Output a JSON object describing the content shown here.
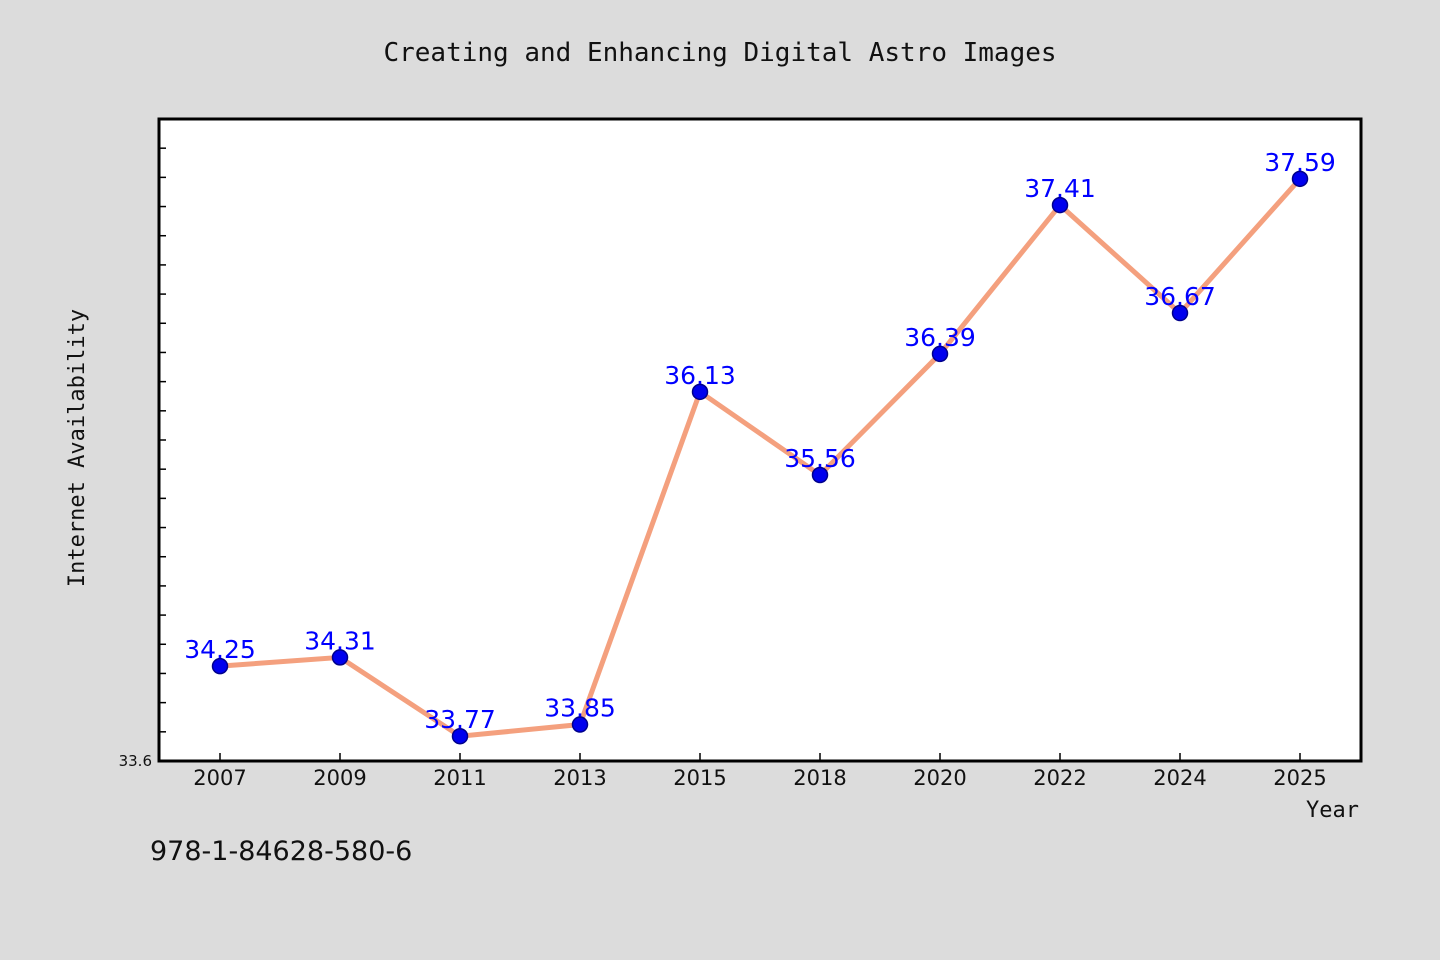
{
  "footer": {
    "isbn": "978-1-84628-580-6"
  },
  "colors": {
    "background": "#dcdcdc",
    "plot_background": "#ffffff",
    "line": "#f4a07e",
    "marker": "#0000ee",
    "marker_edge": "#00008b",
    "data_label": "#0000ff",
    "axis": "#000000"
  },
  "chart_data": {
    "type": "line",
    "title": "Creating and Enhancing Digital Astro Images",
    "xlabel": "Year",
    "ylabel": "Internet Availability",
    "categories": [
      "2007",
      "2009",
      "2011",
      "2013",
      "2015",
      "2018",
      "2020",
      "2022",
      "2024",
      "2025"
    ],
    "series": [
      {
        "values": [
          34.25,
          34.31,
          33.77,
          33.85,
          36.13,
          35.56,
          36.39,
          37.41,
          36.67,
          37.59
        ]
      }
    ],
    "data_labels": [
      "34.25",
      "34.31",
      "33.77",
      "33.85",
      "36.13",
      "35.56",
      "36.39",
      "37.41",
      "36.67",
      "37.59"
    ],
    "ylim": [
      33.6,
      38.0
    ],
    "ytick_label": "33.6",
    "ytick_minor_step": 0.2,
    "grid": false,
    "legend": "none"
  }
}
